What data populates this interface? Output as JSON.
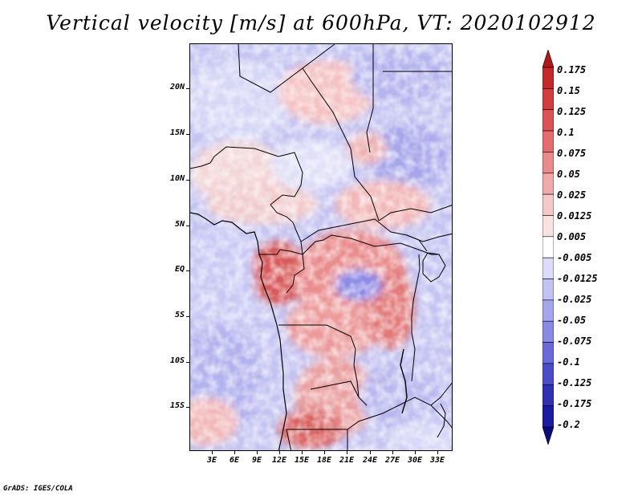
{
  "title": "Vertical velocity [m/s] at 600hPa, VT: 2020102912",
  "footer": "GrADS: IGES/COLA",
  "map": {
    "lon_range": [
      0,
      35
    ],
    "lat_range": [
      -20,
      25
    ],
    "lat_labels": [
      "20N",
      "15N",
      "10N",
      "5N",
      "EQ",
      "5S",
      "10S",
      "15S"
    ],
    "lon_labels": [
      "3E",
      "6E",
      "9E",
      "12E",
      "15E",
      "18E",
      "21E",
      "24E",
      "27E",
      "30E",
      "33E"
    ]
  },
  "colorbar": {
    "labels": [
      "0.175",
      "0.15",
      "0.125",
      "0.1",
      "0.075",
      "0.05",
      "0.025",
      "0.0125",
      "0.005",
      "-0.005",
      "-0.0125",
      "-0.025",
      "-0.05",
      "-0.075",
      "-0.1",
      "-0.125",
      "-0.175",
      "-0.2"
    ],
    "colors": [
      "#b01818",
      "#c42828",
      "#d33c3c",
      "#dd5252",
      "#e46c6c",
      "#eb8a8a",
      "#f1a9a9",
      "#f6c8c8",
      "#fbe2e2",
      "#ffffff",
      "#dcdcfa",
      "#c2c2f4",
      "#a6a6ee",
      "#8a8ae6",
      "#6a6adc",
      "#4c4cca",
      "#3030b4",
      "#1c1ca0",
      "#0a0a80"
    ]
  }
}
